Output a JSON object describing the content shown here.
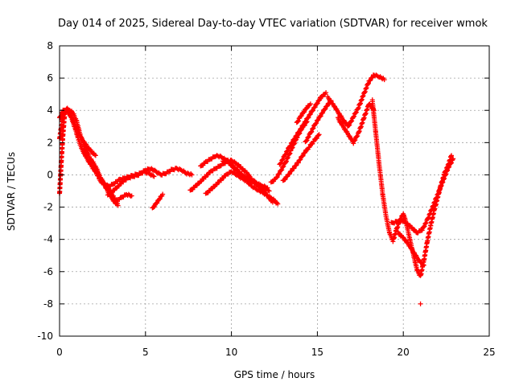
{
  "chart_data": {
    "type": "scatter",
    "title": "Day 014 of 2025, Sidereal Day-to-day VTEC variation (SDTVAR) for receiver wmok",
    "xlabel": "GPS time / hours",
    "ylabel": "SDTVAR / TECUs",
    "xlim": [
      0,
      25
    ],
    "ylim": [
      -10,
      8
    ],
    "xticks": [
      0,
      5,
      10,
      15,
      20,
      25
    ],
    "yticks": [
      -10,
      -8,
      -6,
      -4,
      -2,
      0,
      2,
      4,
      6,
      8
    ],
    "xtick_labels": [
      "0",
      "5",
      "10",
      "15",
      "20",
      "25"
    ],
    "ytick_labels": [
      "-10",
      "-8",
      "-6",
      "-4",
      "-2",
      "0",
      "2",
      "4",
      "6",
      "8"
    ],
    "grid": true,
    "marker": "+",
    "color": "#ff0000",
    "series": [
      {
        "x": [
          0.0,
          0.1,
          0.2,
          0.3,
          0.45,
          0.6,
          0.8,
          1.0,
          1.2,
          1.5,
          1.8,
          2.1,
          2.4,
          2.7,
          3.0,
          3.3
        ],
        "y": [
          -1.2,
          0.8,
          2.5,
          3.8,
          4.1,
          4.0,
          3.8,
          3.3,
          2.5,
          1.6,
          1.0,
          0.5,
          -0.2,
          -0.8,
          -1.4,
          -1.8
        ]
      },
      {
        "x": [
          0.0,
          0.15,
          0.3,
          0.5,
          0.7,
          0.9,
          1.1,
          1.3,
          1.6,
          1.9,
          2.2,
          2.5,
          2.8,
          3.1,
          3.4
        ],
        "y": [
          2.2,
          3.4,
          4.0,
          3.9,
          3.5,
          2.9,
          2.2,
          1.6,
          1.0,
          0.5,
          0.0,
          -0.4,
          -0.8,
          -1.3,
          -1.9
        ]
      },
      {
        "x": [
          0.0,
          0.2,
          0.4,
          0.6,
          0.9,
          1.2,
          1.5,
          1.8,
          2.1
        ],
        "y": [
          3.5,
          4.0,
          4.1,
          3.8,
          3.1,
          2.4,
          1.9,
          1.5,
          1.2
        ]
      },
      {
        "x": [
          2.3,
          2.6,
          2.9,
          3.2,
          3.5,
          3.8,
          4.1,
          4.4,
          4.7,
          5.0,
          5.3,
          5.6,
          5.9,
          6.2,
          6.5,
          6.8,
          7.1,
          7.4,
          7.7
        ],
        "y": [
          -0.3,
          -0.6,
          -0.7,
          -0.5,
          -0.3,
          -0.2,
          -0.1,
          0.0,
          0.1,
          0.3,
          0.4,
          0.2,
          0.0,
          0.1,
          0.3,
          0.4,
          0.3,
          0.1,
          0.0
        ]
      },
      {
        "x": [
          2.8,
          3.1,
          3.4,
          3.7,
          4.0,
          4.3,
          4.6,
          4.9,
          5.2,
          5.5
        ],
        "y": [
          -1.3,
          -1.0,
          -0.7,
          -0.4,
          -0.2,
          -0.1,
          0.0,
          0.2,
          0.1,
          -0.1
        ]
      },
      {
        "x": [
          3.3,
          3.6,
          3.9,
          4.2
        ],
        "y": [
          -1.6,
          -1.4,
          -1.2,
          -1.3
        ]
      },
      {
        "x": [
          5.4,
          5.6,
          5.8,
          6.0
        ],
        "y": [
          -2.1,
          -1.8,
          -1.5,
          -1.2
        ]
      },
      {
        "x": [
          7.6,
          7.9,
          8.2,
          8.5,
          8.8,
          9.1,
          9.4,
          9.7,
          10.0,
          10.3,
          10.6,
          10.9,
          11.2,
          11.5,
          11.8,
          12.1,
          12.4
        ],
        "y": [
          -1.0,
          -0.7,
          -0.4,
          -0.1,
          0.2,
          0.4,
          0.6,
          0.8,
          0.9,
          0.7,
          0.4,
          0.1,
          -0.3,
          -0.6,
          -0.9,
          -1.3,
          -1.7
        ]
      },
      {
        "x": [
          8.2,
          8.5,
          8.8,
          9.1,
          9.4,
          9.7,
          10.0,
          10.3,
          10.6,
          10.9,
          11.2,
          11.5,
          11.8,
          12.1
        ],
        "y": [
          0.5,
          0.8,
          1.0,
          1.2,
          1.1,
          0.9,
          0.6,
          0.3,
          0.0,
          -0.2,
          -0.4,
          -0.6,
          -0.7,
          -0.8
        ]
      },
      {
        "x": [
          8.5,
          8.8,
          9.1,
          9.4,
          9.7,
          10.0,
          10.3,
          10.6,
          10.9,
          11.2,
          11.5,
          11.8,
          12.1,
          12.4,
          12.7
        ],
        "y": [
          -1.2,
          -0.9,
          -0.6,
          -0.3,
          0.0,
          0.2,
          0.0,
          -0.2,
          -0.4,
          -0.7,
          -0.9,
          -1.1,
          -1.3,
          -1.5,
          -1.8
        ]
      },
      {
        "x": [
          9.5,
          9.8,
          10.1,
          10.4,
          10.7,
          11.0,
          11.3,
          11.6,
          11.9,
          12.2
        ],
        "y": [
          0.8,
          0.9,
          0.5,
          0.2,
          -0.1,
          -0.3,
          -0.4,
          -0.6,
          -0.8,
          -1.0
        ]
      },
      {
        "x": [
          12.3,
          12.6,
          12.9,
          13.2,
          13.5,
          13.8,
          14.1,
          14.4
        ],
        "y": [
          -0.5,
          -0.2,
          0.3,
          0.9,
          1.6,
          2.3,
          2.9,
          3.3
        ]
      },
      {
        "x": [
          12.8,
          13.1,
          13.4,
          13.7,
          14.0,
          14.3,
          14.6,
          14.9,
          15.2,
          15.5
        ],
        "y": [
          0.6,
          1.2,
          1.8,
          2.3,
          2.8,
          3.3,
          3.8,
          4.3,
          4.8,
          5.1
        ]
      },
      {
        "x": [
          13.0,
          13.3,
          13.6,
          13.9,
          14.2,
          14.5,
          14.8,
          15.1
        ],
        "y": [
          -0.4,
          0.0,
          0.4,
          0.8,
          1.3,
          1.7,
          2.1,
          2.5
        ]
      },
      {
        "x": [
          13.8,
          14.0,
          14.2,
          14.4,
          14.6
        ],
        "y": [
          3.2,
          3.6,
          3.9,
          4.2,
          4.4
        ]
      },
      {
        "x": [
          14.3,
          14.6,
          14.9,
          15.2,
          15.5,
          15.8
        ],
        "y": [
          2.0,
          2.6,
          3.2,
          3.7,
          4.2,
          4.6
        ]
      },
      {
        "x": [
          15.6,
          15.9,
          16.2,
          16.5,
          16.8,
          17.1,
          17.4,
          17.7,
          18.0,
          18.3,
          18.6,
          18.9
        ],
        "y": [
          4.8,
          4.4,
          3.9,
          3.4,
          3.0,
          3.6,
          4.2,
          5.0,
          5.8,
          6.2,
          6.1,
          5.9
        ]
      },
      {
        "x": [
          16.2,
          16.5,
          16.8,
          17.1,
          17.4,
          17.7,
          18.0,
          18.3
        ],
        "y": [
          3.5,
          3.0,
          2.5,
          2.0,
          2.6,
          3.5,
          4.4,
          4.0
        ]
      },
      {
        "x": [
          18.2,
          18.4,
          18.6,
          18.8,
          19.0,
          19.2,
          19.4,
          19.6,
          19.8,
          20.0,
          20.2,
          20.4,
          20.6,
          20.8,
          21.0,
          21.2,
          21.4,
          21.6,
          21.8,
          22.0,
          22.2,
          22.4,
          22.6,
          22.8
        ],
        "y": [
          4.6,
          2.6,
          0.6,
          -1.2,
          -2.6,
          -3.6,
          -4.1,
          -3.4,
          -2.8,
          -2.4,
          -3.1,
          -4.1,
          -5.0,
          -5.9,
          -6.3,
          -5.3,
          -4.1,
          -3.1,
          -2.2,
          -1.4,
          -0.6,
          0.1,
          0.6,
          1.2
        ]
      },
      {
        "x": [
          19.3,
          19.6,
          19.9,
          20.2,
          20.5,
          20.8,
          21.1,
          21.4,
          21.7,
          22.0,
          22.3,
          22.6,
          22.9
        ],
        "y": [
          -3.0,
          -2.9,
          -2.8,
          -3.0,
          -3.3,
          -3.6,
          -3.4,
          -2.8,
          -2.0,
          -1.2,
          -0.4,
          0.4,
          1.0
        ]
      },
      {
        "x": [
          19.7,
          20.0,
          20.3,
          20.6,
          20.9,
          21.2
        ],
        "y": [
          -3.6,
          -3.9,
          -4.3,
          -4.8,
          -5.3,
          -5.6
        ]
      },
      {
        "x": [
          21.0
        ],
        "y": [
          -8.0
        ]
      }
    ]
  }
}
